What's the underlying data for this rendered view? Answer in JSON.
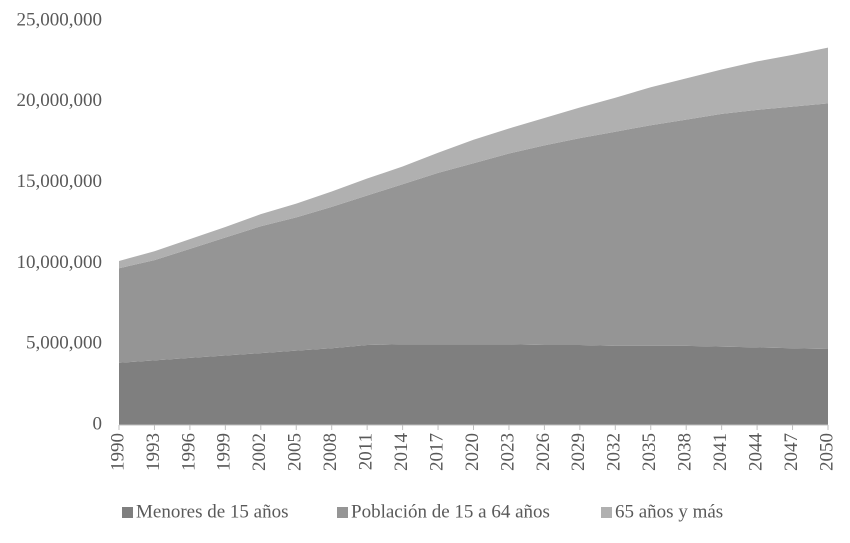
{
  "chart_data": {
    "type": "stacked_area",
    "x": [
      1990,
      1993,
      1996,
      1999,
      2002,
      2005,
      2008,
      2011,
      2014,
      2017,
      2020,
      2023,
      2026,
      2029,
      2032,
      2035,
      2038,
      2041,
      2044,
      2047,
      2050
    ],
    "xlim": [
      1990,
      2050
    ],
    "xticks": [
      1990,
      1993,
      1996,
      1999,
      2002,
      2005,
      2008,
      2011,
      2014,
      2017,
      2020,
      2023,
      2026,
      2029,
      2032,
      2035,
      2038,
      2041,
      2044,
      2047,
      2050
    ],
    "ylim": [
      0,
      25000000
    ],
    "yticks": [
      0,
      {
        "value": 5000000,
        "label": "5,000,000"
      },
      {
        "value": 10000000,
        "label": "10,000,000"
      },
      {
        "value": 15000000,
        "label": "15,000,000"
      },
      {
        "value": 20000000,
        "label": "20,000,000"
      },
      {
        "value": 25000000,
        "label": "25,000,000"
      }
    ],
    "legend": "bottom",
    "series": [
      {
        "name": "Menores de 15 años",
        "color": "#7f7f7f",
        "values": [
          3850000,
          4000000,
          4150000,
          4300000,
          4450000,
          4600000,
          4750000,
          4950000,
          5000000,
          5000000,
          5000000,
          5000000,
          4950000,
          4950000,
          4900000,
          4900000,
          4900000,
          4850000,
          4800000,
          4750000,
          4700000
        ]
      },
      {
        "name": "Población de 15 a 64 años",
        "color": "#959595",
        "values": [
          5850000,
          6200000,
          6750000,
          7300000,
          7850000,
          8250000,
          8750000,
          9250000,
          9900000,
          10600000,
          11200000,
          11800000,
          12350000,
          12800000,
          13250000,
          13650000,
          14000000,
          14400000,
          14700000,
          14950000,
          15200000
        ]
      },
      {
        "name": "65 años y más",
        "color": "#b0b0b0",
        "values": [
          450000,
          550000,
          600000,
          650000,
          750000,
          850000,
          950000,
          1050000,
          1100000,
          1250000,
          1450000,
          1550000,
          1700000,
          1900000,
          2100000,
          2350000,
          2550000,
          2750000,
          3000000,
          3200000,
          3450000
        ]
      }
    ]
  }
}
